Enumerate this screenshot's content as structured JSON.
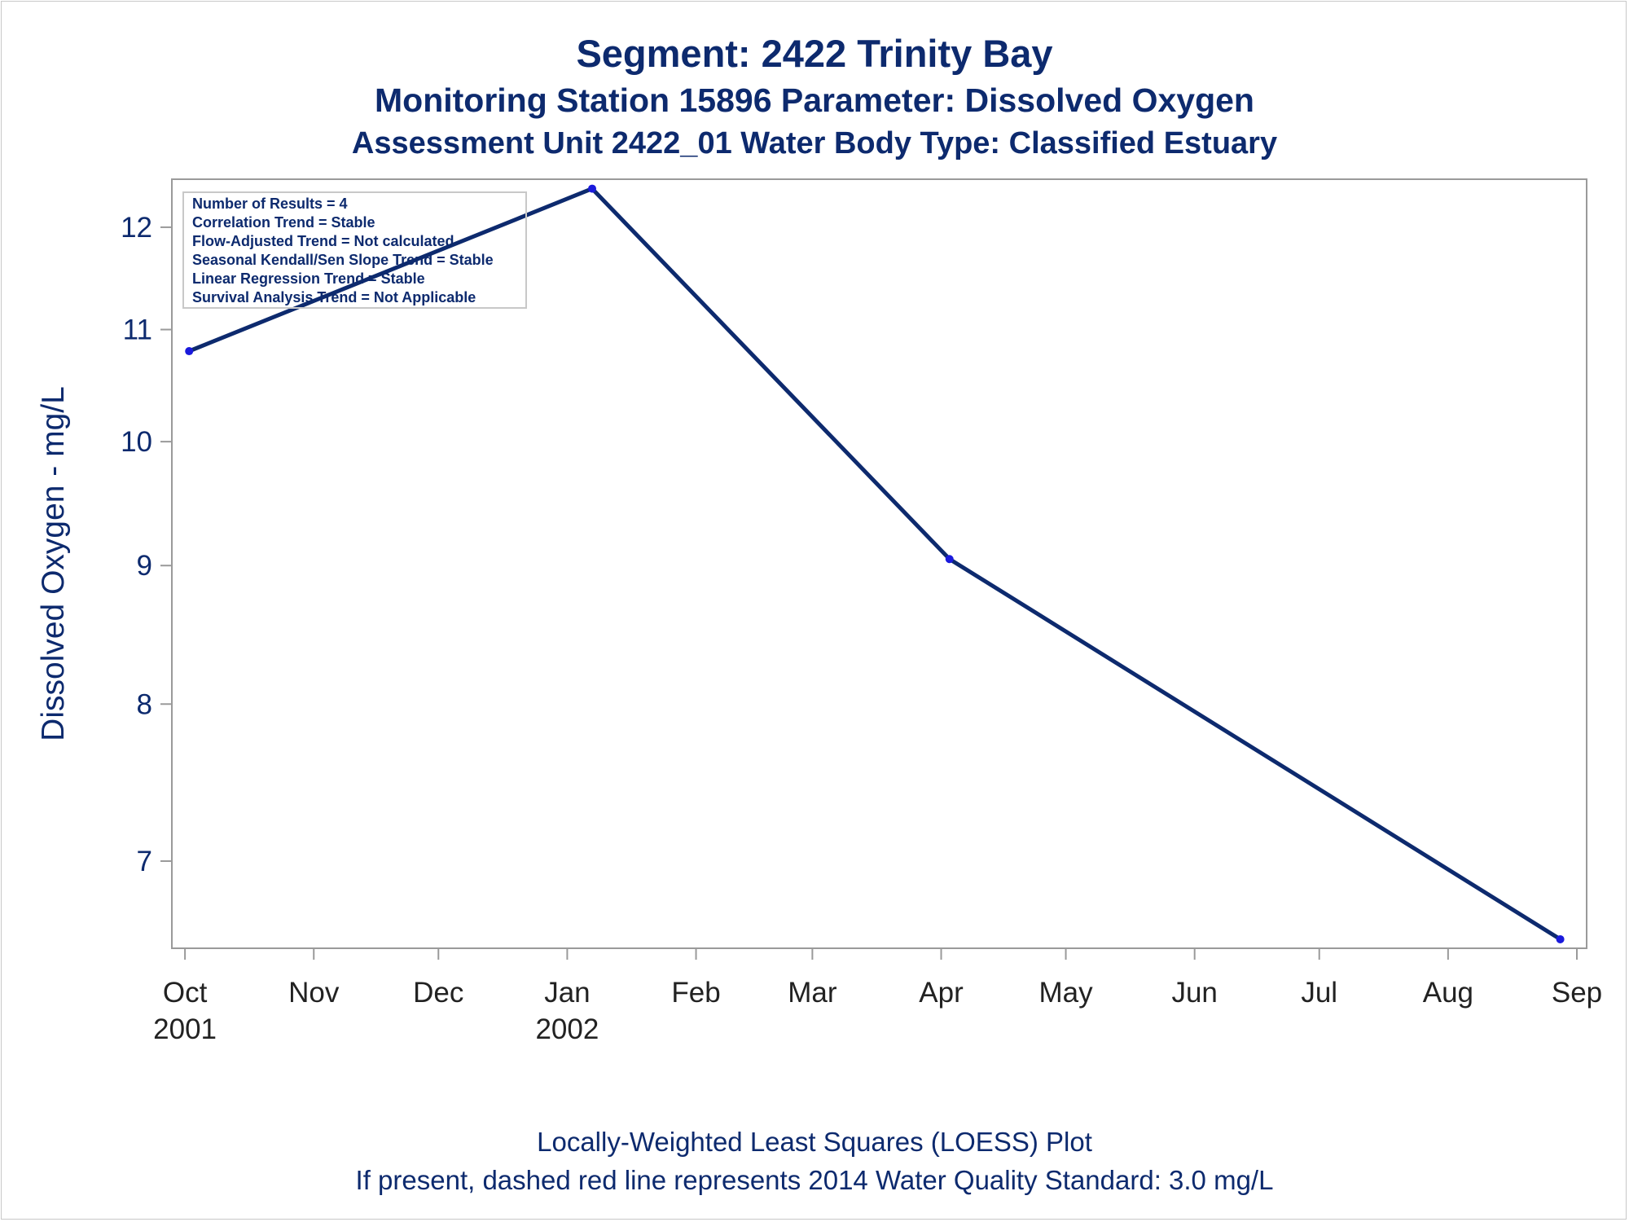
{
  "titles": {
    "line1": "Segment: 2422  Trinity Bay",
    "line2": "Monitoring Station 15896 Parameter: Dissolved Oxygen",
    "line3": "Assessment Unit 2422_01   Water Body Type: Classified Estuary"
  },
  "footnotes": {
    "line1": "Locally-Weighted Least Squares (LOESS) Plot",
    "line2": "If present, dashed red line represents 2014 Water Quality Standard: 3.0 mg/L"
  },
  "stats_box": [
    "Number of Results = 4",
    "Correlation Trend = Stable",
    "Flow-Adjusted Trend = Not calculated",
    "Seasonal Kendall/Sen Slope Trend = Stable",
    "Linear Regression Trend = Stable",
    "Survival Analysis Trend = Not Applicable"
  ],
  "colors": {
    "text": "#0d2a6e",
    "line": "#0d2a6e",
    "marker": "#1a1adc",
    "axis": "#9a9a9a"
  },
  "chart_data": {
    "type": "line",
    "title": "Segment: 2422  Trinity Bay",
    "ylabel": "Dissolved Oxygen - mg/L",
    "xlabel": "",
    "y_scale": "log",
    "ylim": [
      6.5,
      12.5
    ],
    "yticks": [
      7,
      8,
      9,
      10,
      11,
      12
    ],
    "xlim": [
      "2001-09-30",
      "2002-09-01"
    ],
    "xticks": [
      {
        "date": "2001-10-01",
        "label": "Oct",
        "sublabel": "2001"
      },
      {
        "date": "2001-11-01",
        "label": "Nov",
        "sublabel": ""
      },
      {
        "date": "2001-12-01",
        "label": "Dec",
        "sublabel": ""
      },
      {
        "date": "2002-01-01",
        "label": "Jan",
        "sublabel": "2002"
      },
      {
        "date": "2002-02-01",
        "label": "Feb",
        "sublabel": ""
      },
      {
        "date": "2002-03-01",
        "label": "Mar",
        "sublabel": ""
      },
      {
        "date": "2002-04-01",
        "label": "Apr",
        "sublabel": ""
      },
      {
        "date": "2002-05-01",
        "label": "May",
        "sublabel": ""
      },
      {
        "date": "2002-06-01",
        "label": "Jun",
        "sublabel": ""
      },
      {
        "date": "2002-07-01",
        "label": "Jul",
        "sublabel": ""
      },
      {
        "date": "2002-08-01",
        "label": "Aug",
        "sublabel": ""
      },
      {
        "date": "2002-09-01",
        "label": "Sep",
        "sublabel": ""
      }
    ],
    "points": [
      {
        "date": "2001-10-02",
        "value": 10.8
      },
      {
        "date": "2002-01-07",
        "value": 12.4
      },
      {
        "date": "2002-04-03",
        "value": 9.05
      },
      {
        "date": "2002-08-28",
        "value": 6.55
      }
    ],
    "grid": false,
    "legend": "none"
  }
}
